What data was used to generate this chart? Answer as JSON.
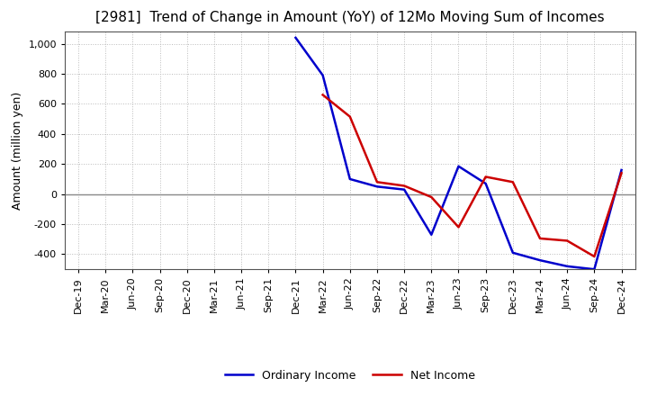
{
  "title": "[2981]  Trend of Change in Amount (YoY) of 12Mo Moving Sum of Incomes",
  "ylabel": "Amount (million yen)",
  "x_labels": [
    "Dec-19",
    "Mar-20",
    "Jun-20",
    "Sep-20",
    "Dec-20",
    "Mar-21",
    "Jun-21",
    "Sep-21",
    "Dec-21",
    "Mar-22",
    "Jun-22",
    "Sep-22",
    "Dec-22",
    "Mar-23",
    "Jun-23",
    "Sep-23",
    "Dec-23",
    "Mar-24",
    "Jun-24",
    "Sep-24",
    "Dec-24"
  ],
  "ordinary_income": [
    null,
    null,
    null,
    null,
    null,
    null,
    null,
    null,
    1040,
    790,
    100,
    50,
    30,
    -270,
    185,
    70,
    -390,
    -440,
    -480,
    -500,
    160
  ],
  "net_income": [
    null,
    null,
    null,
    null,
    null,
    null,
    null,
    null,
    null,
    660,
    515,
    80,
    55,
    -20,
    -220,
    115,
    80,
    -295,
    -310,
    -415,
    140
  ],
  "ylim": [
    -500,
    1080
  ],
  "yticks": [
    -400,
    -200,
    0,
    200,
    400,
    600,
    800,
    1000
  ],
  "line_color_ordinary": "#0000cc",
  "line_color_net": "#cc0000",
  "legend_labels": [
    "Ordinary Income",
    "Net Income"
  ],
  "background_color": "#ffffff",
  "grid_color": "#bbbbbb",
  "zero_line_color": "#888888",
  "title_fontsize": 11,
  "axis_fontsize": 9,
  "tick_fontsize": 8,
  "legend_fontsize": 9
}
